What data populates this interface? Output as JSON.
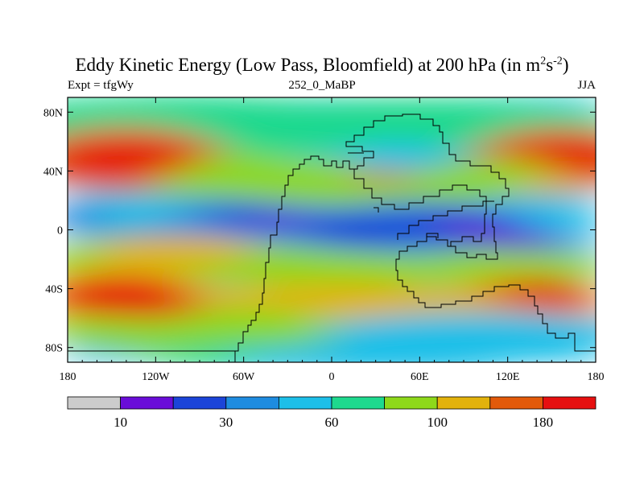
{
  "chart_data": {
    "type": "heatmap",
    "title_main": "Eddy Kinetic Energy (Low Pass, Bloomfield) at 200 hPa (in m",
    "title_unit_sq": "2",
    "title_unit_s": "s",
    "title_unit_exp": "-2",
    "title_close": ")",
    "subtitle_left": "Expt = tfgWy",
    "subtitle_center": "252_0_MaBP",
    "subtitle_right": "JJA",
    "xlim": [
      -180,
      180
    ],
    "ylim": [
      -90,
      90
    ],
    "x_ticks": [
      {
        "value": -180,
        "label": "180"
      },
      {
        "value": -120,
        "label": "120W"
      },
      {
        "value": -60,
        "label": "60W"
      },
      {
        "value": 0,
        "label": "0"
      },
      {
        "value": 60,
        "label": "60E"
      },
      {
        "value": 120,
        "label": "120E"
      },
      {
        "value": 180,
        "label": "180"
      }
    ],
    "y_ticks": [
      {
        "value": 80,
        "label": "80N"
      },
      {
        "value": 40,
        "label": "40N"
      },
      {
        "value": 0,
        "label": "0"
      },
      {
        "value": -40,
        "label": "40S"
      },
      {
        "value": -80,
        "label": "80S"
      }
    ],
    "levels": [
      0,
      10,
      20,
      30,
      45,
      60,
      80,
      100,
      140,
      180,
      240
    ],
    "colors": [
      "#cccccc",
      "#6a0dd8",
      "#1c44d8",
      "#1e8ce0",
      "#1dbfe8",
      "#1ed98e",
      "#8ed81a",
      "#e2b20c",
      "#e25a0a",
      "#e61010"
    ],
    "colorbar_labels": [
      {
        "boundary": 1,
        "label": "10"
      },
      {
        "boundary": 3,
        "label": "30"
      },
      {
        "boundary": 5,
        "label": "60"
      },
      {
        "boundary": 7,
        "label": "100"
      },
      {
        "boundary": 9,
        "label": "180"
      }
    ]
  }
}
